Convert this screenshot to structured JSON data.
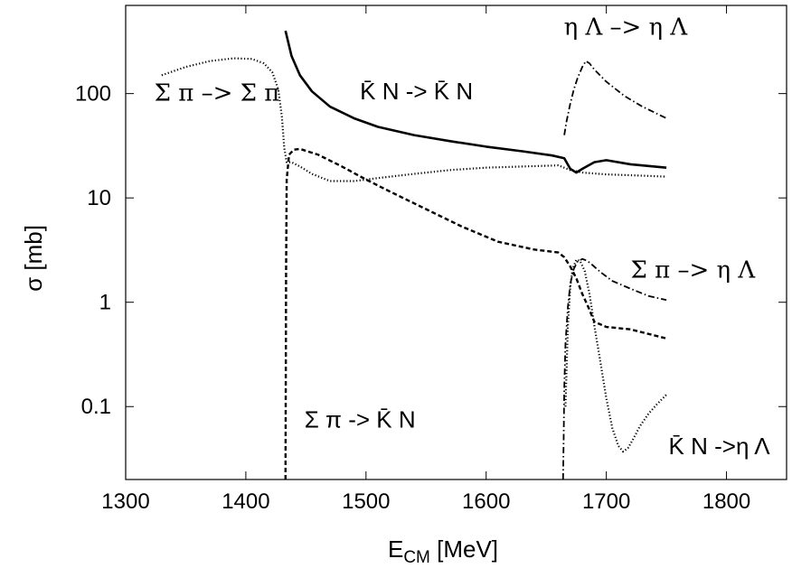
{
  "chart_data": {
    "type": "line",
    "title": "",
    "xlabel": "E",
    "xlabel_sub": "CM",
    "xlabel_unit": " [MeV]",
    "ylabel": "σ [mb]",
    "x_scale": "linear",
    "y_scale": "log",
    "xlim": [
      1300,
      1850
    ],
    "ylim": [
      0.02,
      700
    ],
    "grid": false,
    "x_ticks": [
      1300,
      1400,
      1500,
      1600,
      1700,
      1800
    ],
    "x_tick_labels": [
      "1300",
      "1400",
      "1500",
      "1600",
      "1700",
      "1800"
    ],
    "y_ticks": [
      0.1,
      1,
      10,
      100
    ],
    "y_tick_labels": [
      "0.1",
      "1",
      "10",
      "100"
    ],
    "series": [
      {
        "name": "K̄ N -> K̄ N",
        "style": "solid",
        "color": "#000000",
        "x": [
          1433,
          1438,
          1445,
          1455,
          1470,
          1490,
          1510,
          1540,
          1570,
          1600,
          1630,
          1655,
          1665,
          1670,
          1675,
          1680,
          1690,
          1700,
          1720,
          1750
        ],
        "y": [
          400,
          230,
          150,
          105,
          75,
          58,
          48,
          40,
          35,
          31,
          28,
          25.5,
          24,
          19,
          17.5,
          19,
          22,
          23,
          21,
          19.5
        ]
      },
      {
        "name": "Σ π –> Σ π",
        "style": "dotted",
        "color": "#000000",
        "x": [
          1330,
          1350,
          1370,
          1390,
          1405,
          1415,
          1422,
          1427,
          1430,
          1432,
          1434,
          1438,
          1445,
          1455,
          1470,
          1490,
          1510,
          1540,
          1570,
          1600,
          1630,
          1660,
          1670,
          1680,
          1700,
          1720,
          1750
        ],
        "y": [
          150,
          180,
          205,
          218,
          215,
          195,
          160,
          110,
          60,
          30,
          22,
          22,
          20,
          17,
          14.5,
          14.5,
          15.5,
          17,
          18.5,
          19.5,
          20,
          20.5,
          18.5,
          17.5,
          16.8,
          16.5,
          16
        ]
      },
      {
        "name": "Σ π -> K̄ N",
        "style": "dashed",
        "color": "#000000",
        "x": [
          1433,
          1433.5,
          1434,
          1436,
          1440,
          1445,
          1460,
          1480,
          1500,
          1520,
          1550,
          1580,
          1610,
          1640,
          1660,
          1665,
          1670,
          1675,
          1680,
          1685,
          1690,
          1700,
          1720,
          1750
        ],
        "y": [
          0.02,
          2,
          15,
          26,
          29,
          29.5,
          26,
          20,
          15,
          11.5,
          7.8,
          5.3,
          3.8,
          3.2,
          3.0,
          2.7,
          2.2,
          1.7,
          1.2,
          0.9,
          0.65,
          0.58,
          0.55,
          0.45
        ]
      },
      {
        "name": "η Λ –> η Λ",
        "style": "dashdot",
        "color": "#000000",
        "x": [
          1665,
          1667,
          1670,
          1673,
          1676,
          1680,
          1683,
          1686,
          1690,
          1700,
          1715,
          1730,
          1750
        ],
        "y": [
          40,
          55,
          80,
          110,
          140,
          180,
          205,
          195,
          170,
          130,
          95,
          75,
          58
        ]
      },
      {
        "name": "Σ π –> η Λ",
        "style": "dashdot",
        "color": "#000000",
        "x": [
          1664,
          1664.5,
          1665,
          1666,
          1668,
          1670,
          1673,
          1676,
          1680,
          1684,
          1688,
          1695,
          1705,
          1720,
          1735,
          1750
        ],
        "y": [
          0.02,
          0.05,
          0.15,
          0.4,
          0.9,
          1.5,
          2.1,
          2.45,
          2.6,
          2.5,
          2.3,
          1.95,
          1.6,
          1.35,
          1.15,
          1.05
        ]
      },
      {
        "name": "K̄ N ->η Λ",
        "style": "dotted",
        "color": "#000000",
        "x": [
          1666,
          1668,
          1670,
          1672,
          1675,
          1678,
          1682,
          1686,
          1690,
          1695,
          1700,
          1705,
          1710,
          1714,
          1718,
          1722,
          1728,
          1735,
          1742,
          1750
        ],
        "y": [
          0.1,
          0.6,
          1.4,
          2.1,
          2.55,
          2.5,
          2.0,
          1.2,
          0.6,
          0.27,
          0.12,
          0.062,
          0.042,
          0.037,
          0.04,
          0.048,
          0.065,
          0.085,
          0.105,
          0.13
        ]
      }
    ],
    "annotations": [
      {
        "text": "η Λ –> η Λ",
        "font": "serif",
        "at": [
          1716,
          440
        ]
      },
      {
        "text": "K̄ N -> K̄ N",
        "font": "sans",
        "at": [
          1542,
          105
        ]
      },
      {
        "text": "Σ π –> Σ π",
        "font": "serif",
        "at": [
          1376,
          102
        ]
      },
      {
        "text": "Σ π –> η Λ",
        "font": "serif",
        "at": [
          1772,
          2.05
        ]
      },
      {
        "text": "Σ π -> K̄ N",
        "font": "sans",
        "at": [
          1495,
          0.075
        ]
      },
      {
        "text": "K̄ N ->η Λ",
        "font": "sans",
        "at": [
          1794,
          0.042
        ]
      }
    ]
  }
}
